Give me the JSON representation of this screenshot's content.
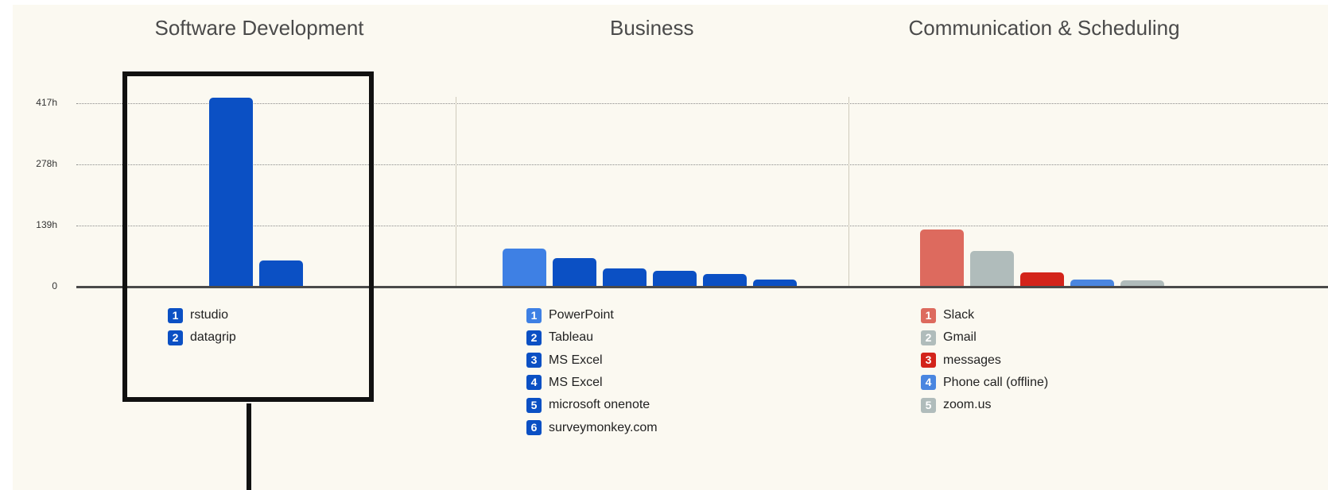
{
  "chart_data": {
    "type": "bar",
    "y_axis": {
      "ticks": [
        {
          "value": 0,
          "label": "0"
        },
        {
          "value": 139,
          "label": "139h"
        },
        {
          "value": 278,
          "label": "278h"
        },
        {
          "value": 417,
          "label": "417h"
        }
      ],
      "ylim": [
        0,
        417
      ],
      "unit": "h"
    },
    "grid": true,
    "groups": [
      {
        "title": "Software Development",
        "bars": [
          {
            "rank": "1",
            "label": "rstudio",
            "value": 430,
            "color": "#0b50c4"
          },
          {
            "rank": "2",
            "label": "datagrip",
            "value": 60,
            "color": "#0b50c4"
          }
        ]
      },
      {
        "title": "Business",
        "bars": [
          {
            "rank": "1",
            "label": "PowerPoint",
            "value": 86,
            "color": "#3e80e4"
          },
          {
            "rank": "2",
            "label": "Tableau",
            "value": 65,
            "color": "#0b50c4"
          },
          {
            "rank": "3",
            "label": "MS Excel",
            "value": 42,
            "color": "#0b50c4"
          },
          {
            "rank": "4",
            "label": "MS Excel",
            "value": 36,
            "color": "#0b50c4"
          },
          {
            "rank": "5",
            "label": "microsoft onenote",
            "value": 28,
            "color": "#0b50c4"
          },
          {
            "rank": "6",
            "label": "surveymonkey.com",
            "value": 17,
            "color": "#0b50c4"
          }
        ]
      },
      {
        "title": "Communication & Scheduling",
        "bars": [
          {
            "rank": "1",
            "label": "Slack",
            "value": 130,
            "color": "#dd6a5e"
          },
          {
            "rank": "2",
            "label": "Gmail",
            "value": 81,
            "color": "#b0bcbb"
          },
          {
            "rank": "3",
            "label": "messages",
            "value": 32,
            "color": "#d3241b"
          },
          {
            "rank": "4",
            "label": "Phone call (offline)",
            "value": 16,
            "color": "#4a86e0"
          },
          {
            "rank": "5",
            "label": "zoom.us",
            "value": 14,
            "color": "#b0bcbb"
          }
        ]
      }
    ]
  },
  "annotation": {
    "highlight_color": "#111111"
  }
}
